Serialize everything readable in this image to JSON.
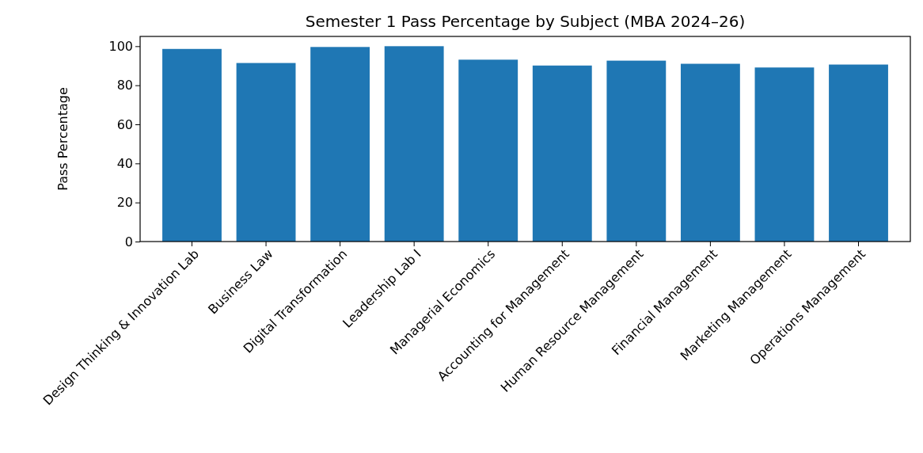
{
  "chart_data": {
    "type": "bar",
    "title": "Semester 1 Pass Percentage by Subject (MBA 2024–26)",
    "ylabel": "Pass Percentage",
    "categories": [
      "Design Thinking & Innovation Lab",
      "Business Law",
      "Digital Transformation",
      "Leadership Lab I",
      "Managerial Economics",
      "Accounting for Management",
      "Human Resource Management",
      "Financial Management",
      "Marketing Management",
      "Operations Management"
    ],
    "values": [
      98.6,
      91.4,
      99.6,
      100,
      93.1,
      90.1,
      92.6,
      91.0,
      89.1,
      90.6
    ],
    "color": "#1f77b4",
    "ylim": [
      0,
      105
    ],
    "yticks": [
      0,
      20,
      40,
      60,
      80,
      100
    ],
    "grid": false
  }
}
